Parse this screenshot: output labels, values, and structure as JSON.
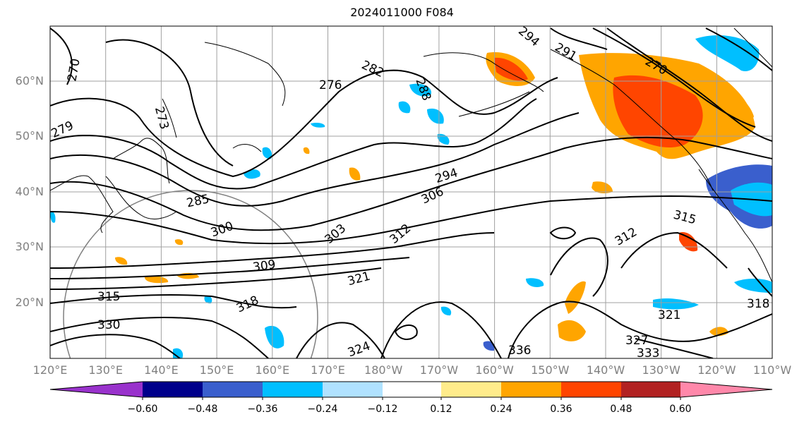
{
  "title": "2024011000 F084",
  "map": {
    "lon_labels": [
      "120°E",
      "130°E",
      "140°E",
      "150°E",
      "160°E",
      "170°E",
      "180°W",
      "170°W",
      "160°W",
      "150°W",
      "140°W",
      "130°W",
      "120°W",
      "110°W"
    ],
    "lat_labels": [
      "20°N",
      "30°N",
      "40°N",
      "50°N",
      "60°N"
    ],
    "contour_labels": [
      "270",
      "276",
      "282",
      "288",
      "291",
      "294",
      "270",
      "273",
      "279",
      "285",
      "294",
      "300",
      "306",
      "303",
      "312",
      "309",
      "315",
      "318",
      "321",
      "324",
      "327",
      "330",
      "333",
      "336",
      "315",
      "312",
      "321",
      "318"
    ]
  },
  "colorbar": {
    "colors": [
      "#9932cc",
      "#00008b",
      "#3a5fcd",
      "#00bfff",
      "#b0e2ff",
      "#ffffff",
      "#ffec8b",
      "#ffa500",
      "#ff4500",
      "#b22222",
      "#ff88aa"
    ],
    "ticks": [
      "−0.60",
      "−0.48",
      "−0.36",
      "−0.24",
      "−0.12",
      "0.12",
      "0.24",
      "0.36",
      "0.48",
      "0.60"
    ]
  }
}
